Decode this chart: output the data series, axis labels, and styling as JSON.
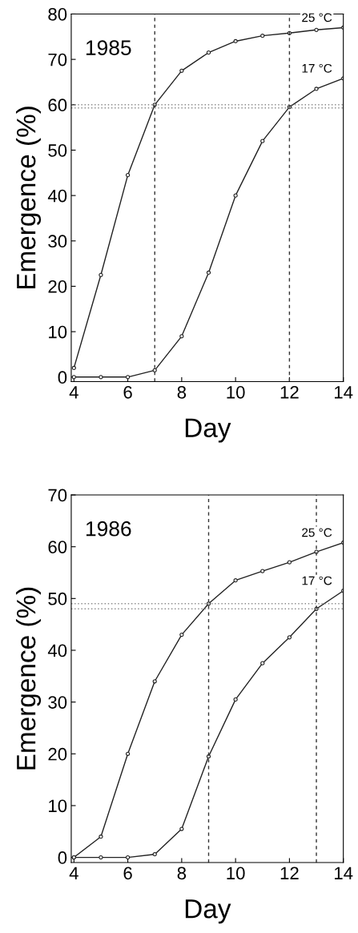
{
  "chart_data": [
    {
      "type": "line",
      "annotations": [
        "1985"
      ],
      "xlabel": "Day",
      "ylabel": "Emergence (%)",
      "x": [
        4,
        5,
        6,
        7,
        8,
        9,
        10,
        11,
        12,
        13,
        14
      ],
      "xlim": [
        3.9,
        14
      ],
      "xticks": [
        4,
        6,
        8,
        10,
        12,
        14
      ],
      "ylim": [
        -1,
        80
      ],
      "yticks": [
        0,
        10,
        20,
        30,
        40,
        50,
        60,
        70,
        80
      ],
      "marker": "circle",
      "line_style": "solid",
      "grid": false,
      "legend": false,
      "series": [
        {
          "name": "25 °C",
          "color": "#222222",
          "values": [
            2,
            22.5,
            44.5,
            60,
            67.5,
            71.5,
            74,
            75.2,
            75.8,
            76.5,
            77
          ]
        },
        {
          "name": "17 °C",
          "color": "#222222",
          "values": [
            0,
            0,
            0,
            1.5,
            9,
            23,
            40,
            52,
            59.5,
            63.5,
            65.8
          ]
        }
      ],
      "ref_lines": [
        {
          "axis": "x",
          "value": 7,
          "line_style": "dashed",
          "color": "#333333"
        },
        {
          "axis": "x",
          "value": 12,
          "line_style": "dashed",
          "color": "#333333"
        },
        {
          "axis": "y",
          "value": 60,
          "line_style": "dotted",
          "color": "#888888"
        },
        {
          "axis": "y",
          "value": 59.3,
          "line_style": "dotted",
          "color": "#888888"
        }
      ]
    },
    {
      "type": "line",
      "annotations": [
        "1986"
      ],
      "xlabel": "Day",
      "ylabel": "Emergence (%)",
      "x": [
        4,
        5,
        6,
        7,
        8,
        9,
        10,
        11,
        12,
        13,
        14
      ],
      "xlim": [
        3.9,
        14
      ],
      "xticks": [
        4,
        6,
        8,
        10,
        12,
        14
      ],
      "ylim": [
        -1,
        70
      ],
      "yticks": [
        0,
        10,
        20,
        30,
        40,
        50,
        60,
        70
      ],
      "marker": "circle",
      "line_style": "solid",
      "grid": false,
      "legend": false,
      "series": [
        {
          "name": "25 °C",
          "color": "#222222",
          "values": [
            0,
            4,
            20,
            34,
            43,
            49,
            53.5,
            55.3,
            57,
            59,
            60.8
          ]
        },
        {
          "name": "17 °C",
          "color": "#222222",
          "values": [
            0,
            0,
            0,
            0.6,
            5.5,
            19.5,
            30.5,
            37.5,
            42.5,
            48,
            51.5
          ]
        }
      ],
      "ref_lines": [
        {
          "axis": "x",
          "value": 9,
          "line_style": "dashed",
          "color": "#333333"
        },
        {
          "axis": "x",
          "value": 13,
          "line_style": "dashed",
          "color": "#333333"
        },
        {
          "axis": "y",
          "value": 49,
          "line_style": "dotted",
          "color": "#888888"
        },
        {
          "axis": "y",
          "value": 48,
          "line_style": "dotted",
          "color": "#888888"
        }
      ]
    }
  ]
}
